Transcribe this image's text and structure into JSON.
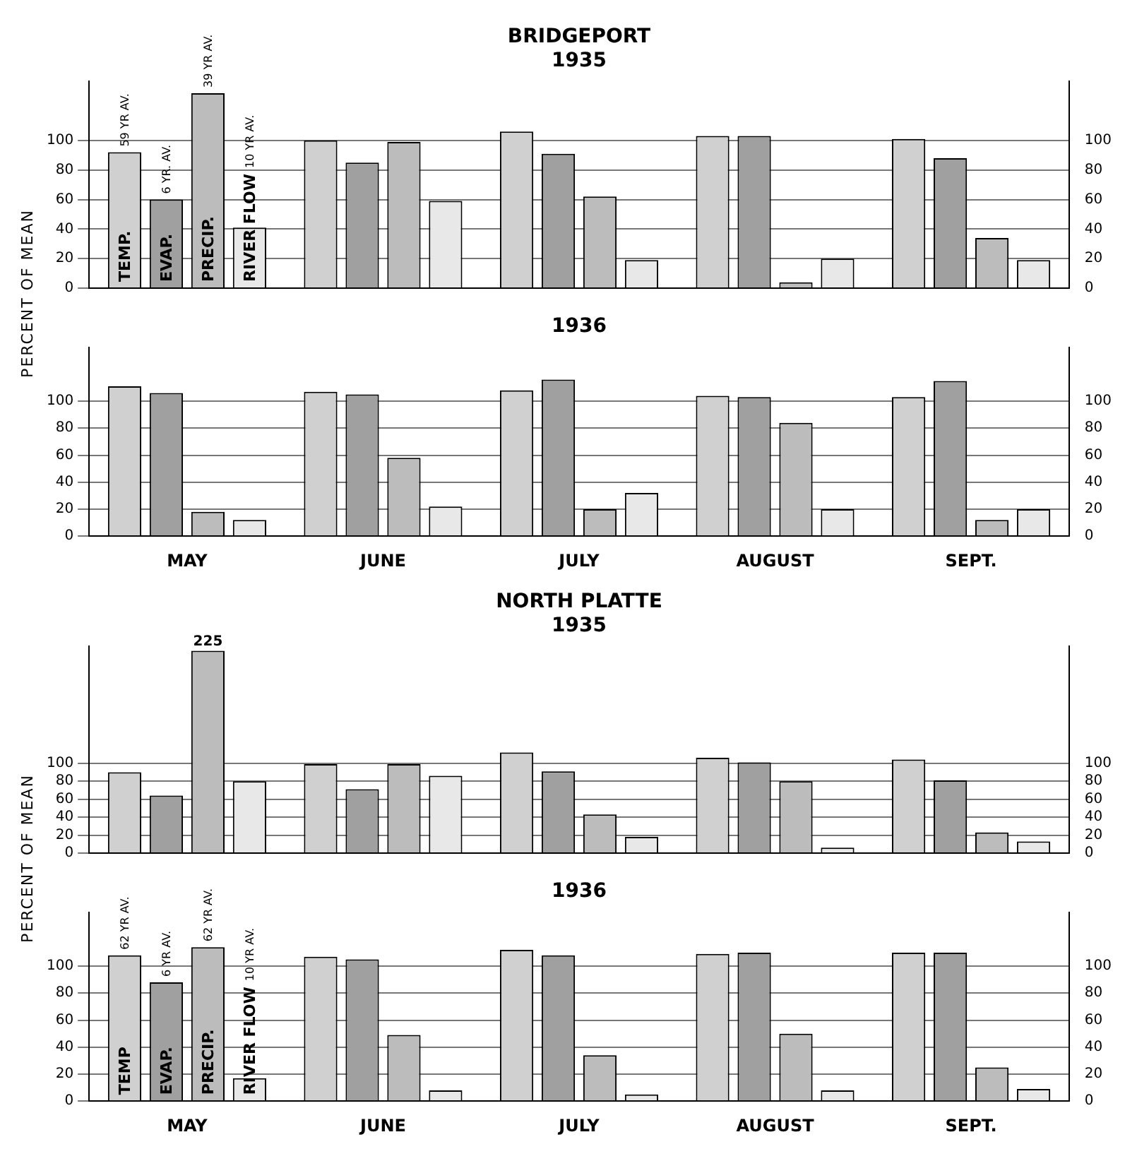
{
  "chart_data": [
    {
      "type": "bar",
      "title": "BRIDGEPORT",
      "subtitle": "1935",
      "ylabel": "PERCENT OF MEAN",
      "categories": [
        null,
        null,
        null,
        null,
        null
      ],
      "series": [
        {
          "name": "TEMP.",
          "color": "#d0d0d0",
          "values": [
            92,
            100,
            106,
            103,
            101
          ]
        },
        {
          "name": "EVAP.",
          "color": "#a0a0a0",
          "values": [
            60,
            85,
            91,
            103,
            88
          ]
        },
        {
          "name": "PRECIP.",
          "color": "#bcbcbc",
          "values": [
            132,
            99,
            62,
            4,
            34
          ]
        },
        {
          "name": "RIVER FLOW",
          "color": "#e8e8e8",
          "values": [
            41,
            59,
            19,
            20,
            19
          ]
        }
      ],
      "annotations": [
        "59 YR AV.",
        "6 YR. AV.",
        "39 YR AV.",
        "10 YR AV."
      ],
      "ylim": [
        0,
        140
      ],
      "yticks": [
        0,
        20,
        40,
        60,
        80,
        100
      ],
      "y2lim": [
        0,
        140
      ],
      "y2ticks": [
        0,
        20,
        40,
        60,
        80,
        100
      ],
      "grid": "y",
      "tick_labels": "y"
    },
    {
      "type": "bar",
      "title": "1936",
      "categories": [
        "MAY",
        "JUNE",
        "JULY",
        "AUGUST",
        "SEPT."
      ],
      "series": [
        {
          "color": "#d0d0d0",
          "values": [
            111,
            107,
            108,
            104,
            103
          ]
        },
        {
          "color": "#a0a0a0",
          "values": [
            106,
            105,
            116,
            103,
            115
          ]
        },
        {
          "color": "#bcbcbc",
          "values": [
            18,
            58,
            20,
            84,
            12
          ]
        },
        {
          "color": "#e8e8e8",
          "values": [
            12,
            22,
            32,
            20,
            20
          ]
        }
      ],
      "ylim": [
        0,
        140
      ],
      "yticks": [
        0,
        20,
        40,
        60,
        80,
        100
      ],
      "y2lim": [
        0,
        140
      ],
      "y2ticks": [
        0,
        20,
        40,
        60,
        80,
        100
      ],
      "grid": "y"
    },
    {
      "type": "bar",
      "title": "NORTH PLATTE",
      "subtitle": "1935",
      "ylabel": "PERCENT OF MEAN",
      "categories": [
        null,
        null,
        null,
        null,
        null
      ],
      "series": [
        {
          "color": "#d0d0d0",
          "values": [
            90,
            99,
            112,
            106,
            104
          ]
        },
        {
          "color": "#a0a0a0",
          "values": [
            64,
            71,
            91,
            101,
            81
          ]
        },
        {
          "color": "#bcbcbc",
          "values": [
            225,
            99,
            43,
            80,
            23
          ],
          "value_labels": [
            "225",
            null,
            null,
            null,
            null
          ]
        },
        {
          "color": "#e8e8e8",
          "values": [
            80,
            86,
            18,
            6,
            13
          ]
        }
      ],
      "ylim": [
        0,
        230
      ],
      "yticks": [
        0,
        20,
        40,
        60,
        80,
        100
      ],
      "y2lim": [
        0,
        230
      ],
      "y2ticks": [
        0,
        20,
        40,
        60,
        80,
        100
      ],
      "grid": "y",
      "tick_labels": "y"
    },
    {
      "type": "bar",
      "title": "1936",
      "categories": [
        "MAY",
        "JUNE",
        "JULY",
        "AUGUST",
        "SEPT."
      ],
      "series": [
        {
          "name": "TEMP",
          "color": "#d0d0d0",
          "values": [
            108,
            107,
            112,
            109,
            110
          ]
        },
        {
          "name": "EVAP.",
          "color": "#a0a0a0",
          "values": [
            88,
            105,
            108,
            110,
            110
          ]
        },
        {
          "name": "PRECIP.",
          "color": "#bcbcbc",
          "values": [
            114,
            49,
            34,
            50,
            25
          ]
        },
        {
          "name": "RIVER FLOW",
          "color": "#e8e8e8",
          "values": [
            17,
            8,
            5,
            8,
            9
          ]
        }
      ],
      "annotations": [
        "62 YR AV.",
        "6 YR AV.",
        "62 YR AV.",
        "10 YR AV."
      ],
      "ylim": [
        0,
        140
      ],
      "yticks": [
        0,
        20,
        40,
        60,
        80,
        100
      ],
      "y2lim": [
        0,
        140
      ],
      "y2ticks": [
        0,
        20,
        40,
        60,
        80,
        100
      ],
      "grid": "y"
    }
  ]
}
